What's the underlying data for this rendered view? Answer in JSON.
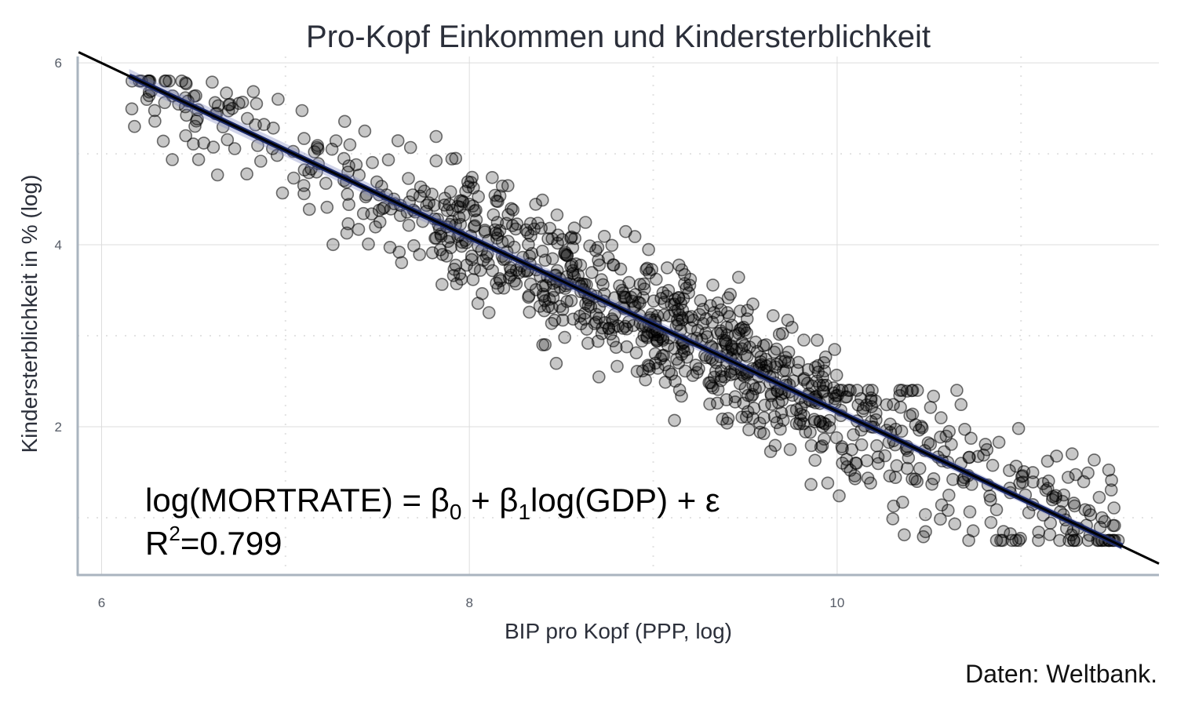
{
  "chart_data": {
    "type": "scatter",
    "title": "Pro-Kopf Einkommen und Kindersterblichkeit",
    "xlabel": "BIP pro Kopf (PPP, log)",
    "ylabel": "Kindersterblichkeit in % (log)",
    "caption": "Daten: Weltbank.",
    "xlim": [
      5.87,
      11.75
    ],
    "ylim": [
      0.37,
      6.07
    ],
    "x_ticks": [
      "6",
      "8",
      "10"
    ],
    "y_ticks": [
      "2",
      "4",
      "6"
    ],
    "grid": true,
    "fit_line": {
      "intercept": 11.74,
      "slope": -0.957
    },
    "annotation": {
      "formula_parts": [
        "log(MORTRATE) = β",
        "0",
        " + β",
        "1",
        "log(GDP) + ε"
      ],
      "r2_prefix": "R",
      "r2_sup": "2",
      "r2_value": "=0.799"
    },
    "clusters": [
      {
        "x": [
          6.15,
          7.8
        ],
        "y": [
          3.1,
          5.8
        ],
        "n": 150
      },
      {
        "x": [
          7.8,
          9.0
        ],
        "y": [
          2.2,
          5.4
        ],
        "n": 330
      },
      {
        "x": [
          9.0,
          10.0
        ],
        "y": [
          1.3,
          4.4
        ],
        "n": 340
      },
      {
        "x": [
          10.0,
          11.55
        ],
        "y": [
          0.75,
          2.4
        ],
        "n": 230
      }
    ]
  }
}
